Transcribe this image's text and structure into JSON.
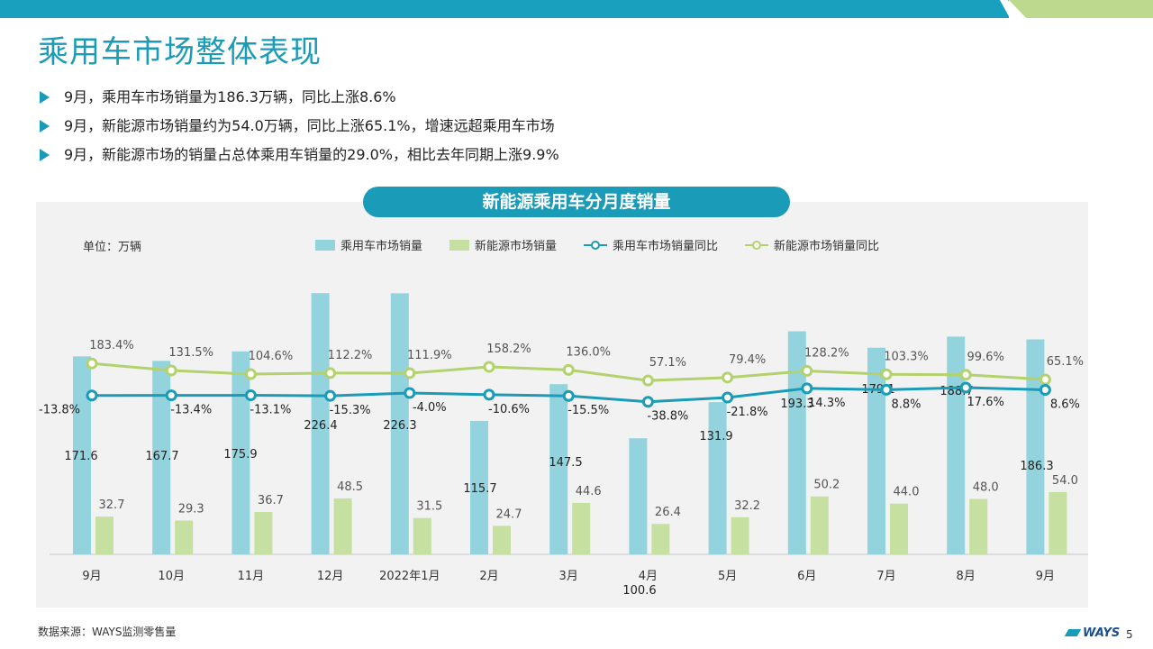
{
  "page": {
    "title": "乘用车市场整体表现",
    "bullets": [
      "9月，乘用车市场销量为186.3万辆，同比上涨8.6%",
      "9月，新能源市场销量约为54.0万辆，同比上涨65.1%，增速远超乘用车市场",
      "9月，新能源市场的销量占总体乘用车销量的29.0%，相比去年同期上涨9.9%"
    ],
    "source": "数据来源：WAYS监测零售量",
    "logo": "WAYS",
    "page_number": "5"
  },
  "colors": {
    "accent": "#1a9bb8",
    "bar_total": "#92d3dd",
    "bar_nev": "#c5e0a0",
    "line_total": "#1a9bb8",
    "line_nev": "#b3d16d"
  },
  "chart_data": {
    "type": "bar",
    "title": "新能源乘用车分月度销量",
    "unit_label": "单位：万辆",
    "categories": [
      "9月",
      "10月",
      "11月",
      "12月",
      "2022年1月",
      "2月",
      "3月",
      "4月",
      "5月",
      "6月",
      "7月",
      "8月",
      "9月"
    ],
    "series": [
      {
        "name": "乘用车市场销量",
        "kind": "bar",
        "values": [
          171.6,
          167.7,
          175.9,
          226.4,
          226.3,
          115.7,
          147.5,
          100.6,
          131.9,
          193.3,
          179.1,
          188.7,
          186.3
        ],
        "labels": [
          "171.6",
          "167.7",
          "175.9",
          "226.4",
          "226.3",
          "115.7",
          "147.5",
          "100.6",
          "131.9",
          "193.3",
          "179.1",
          "188.7",
          "186.3"
        ]
      },
      {
        "name": "新能源市场销量",
        "kind": "bar",
        "values": [
          32.7,
          29.3,
          36.7,
          48.5,
          31.5,
          24.7,
          44.6,
          26.4,
          32.2,
          50.2,
          44.0,
          48.0,
          54.0
        ],
        "labels": [
          "32.7",
          "29.3",
          "36.7",
          "48.5",
          "31.5",
          "24.7",
          "44.6",
          "26.4",
          "32.2",
          "50.2",
          "44.0",
          "48.0",
          "54.0"
        ]
      },
      {
        "name": "乘用车市场销量同比",
        "kind": "line",
        "values": [
          -13.8,
          -13.4,
          -13.1,
          -15.3,
          -4.0,
          -10.6,
          -15.5,
          -38.8,
          -21.8,
          14.3,
          8.8,
          17.6,
          8.6
        ],
        "labels": [
          "-13.8%",
          "-13.4%",
          "-13.1%",
          "-15.3%",
          "-4.0%",
          "-10.6%",
          "-15.5%",
          "-38.8%",
          "-21.8%",
          "14.3%",
          "8.8%",
          "17.6%",
          "8.6%"
        ]
      },
      {
        "name": "新能源市场销量同比",
        "kind": "line",
        "values": [
          183.4,
          131.5,
          104.6,
          112.2,
          111.9,
          158.2,
          136.0,
          57.1,
          79.4,
          128.2,
          103.3,
          99.6,
          65.1
        ],
        "labels": [
          "183.4%",
          "131.5%",
          "104.6%",
          "112.2%",
          "111.9%",
          "158.2%",
          "136.0%",
          "57.1%",
          "79.4%",
          "128.2%",
          "103.3%",
          "99.6%",
          "65.1%"
        ]
      }
    ],
    "legend_position": "top",
    "grid": false
  }
}
